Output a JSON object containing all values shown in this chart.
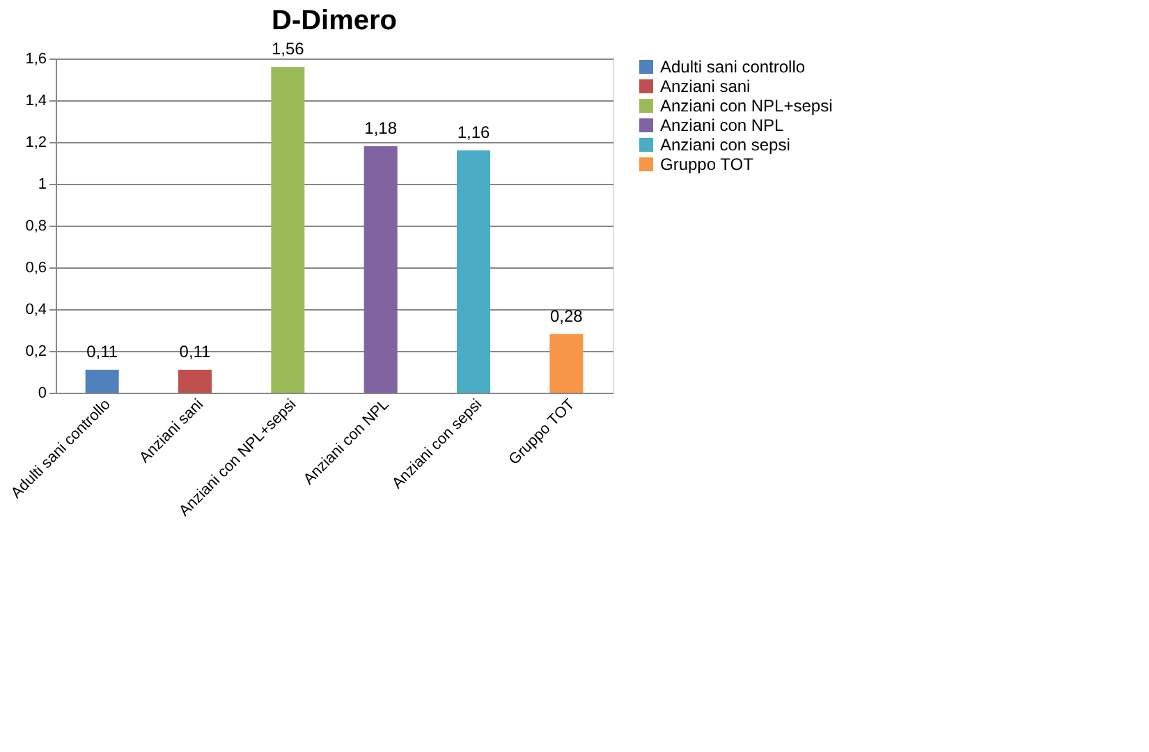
{
  "chart_data": {
    "type": "bar",
    "title": "D-Dimero",
    "categories": [
      "Adulti sani controllo",
      "Anziani sani",
      "Anziani con NPL+sepsi",
      "Anziani con NPL",
      "Anziani con sepsi",
      "Gruppo TOT"
    ],
    "series": [
      {
        "name": "Adulti sani controllo",
        "color": "#4f81bd",
        "values": [
          0.11,
          null,
          null,
          null,
          null,
          null
        ],
        "value_labels": [
          "0,11",
          null,
          null,
          null,
          null,
          null
        ]
      },
      {
        "name": "Anziani sani",
        "color": "#c0504d",
        "values": [
          null,
          0.11,
          null,
          null,
          null,
          null
        ],
        "value_labels": [
          null,
          "0,11",
          null,
          null,
          null,
          null
        ]
      },
      {
        "name": "Anziani con NPL+sepsi",
        "color": "#9bbb59",
        "values": [
          null,
          null,
          1.56,
          null,
          null,
          null
        ],
        "value_labels": [
          null,
          null,
          "1,56",
          null,
          null,
          null
        ]
      },
      {
        "name": "Anziani con NPL",
        "color": "#8064a2",
        "values": [
          null,
          null,
          null,
          1.18,
          null,
          null
        ],
        "value_labels": [
          null,
          null,
          null,
          "1,18",
          null,
          null
        ]
      },
      {
        "name": "Anziani con sepsi",
        "color": "#4bacc6",
        "values": [
          null,
          null,
          null,
          null,
          1.16,
          null
        ],
        "value_labels": [
          null,
          null,
          null,
          null,
          "1,16",
          null
        ]
      },
      {
        "name": "Gruppo TOT",
        "color": "#f79646",
        "values": [
          null,
          null,
          null,
          null,
          null,
          0.28
        ],
        "value_labels": [
          null,
          null,
          null,
          null,
          null,
          "0,28"
        ]
      }
    ],
    "ylim": [
      0,
      1.6
    ],
    "yticks": [
      0,
      {
        "value": 0.2,
        "label": "0,2"
      },
      {
        "value": 0.4,
        "label": "0,4"
      },
      {
        "value": 0.6,
        "label": "0,6"
      },
      {
        "value": 0.8,
        "label": "0,8"
      },
      1,
      {
        "value": 1.2,
        "label": "1,2"
      },
      {
        "value": 1.4,
        "label": "1,4"
      },
      {
        "value": 1.6,
        "label": "1,6"
      }
    ],
    "grid": "y",
    "legend": "right"
  }
}
